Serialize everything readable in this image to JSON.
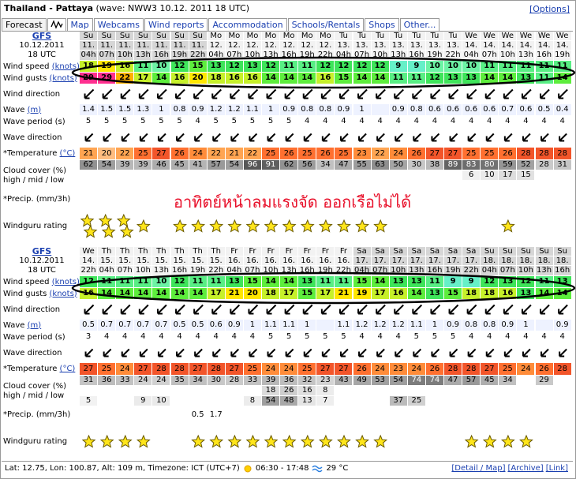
{
  "header": {
    "title": "Thailand - Pattaya",
    "wave_info": "(wave: NWW3 10.12. 2011 18 UTC)",
    "options": "[Options]"
  },
  "tabs": [
    "Forecast",
    "Map",
    "Webcams",
    "Wind reports",
    "Accommodation",
    "Schools/Rentals",
    "Shops",
    "Other..."
  ],
  "row_labels": {
    "wind_speed": {
      "text": "Wind speed",
      "unit": "(knots)"
    },
    "wind_gusts": {
      "text": "Wind gusts",
      "unit": "(knots)"
    },
    "wind_direction": {
      "text": "Wind direction"
    },
    "wave": {
      "text": "Wave",
      "unit": "(m)"
    },
    "wave_period": {
      "text": "Wave period (s)"
    },
    "wave_direction": {
      "text": "Wave direction"
    },
    "temperature": {
      "text": "*Temperature",
      "unit": "(°C)"
    },
    "cloud": {
      "text": "Cloud cover (%)",
      "sub": "high / mid / low"
    },
    "precip": {
      "text": "*Precip. (mm/3h)"
    },
    "rating": {
      "text": "Windguru rating"
    }
  },
  "forecasts": [
    {
      "model": "GFS",
      "date": "10.12.2011",
      "time": "18 UTC",
      "days": [
        "Su",
        "Su",
        "Su",
        "Su",
        "Su",
        "Su",
        "Su",
        "Mo",
        "Mo",
        "Mo",
        "Mo",
        "Mo",
        "Mo",
        "Mo",
        "Tu",
        "Tu",
        "Tu",
        "Tu",
        "Tu",
        "Tu",
        "Tu",
        "We",
        "We",
        "We",
        "We",
        "We",
        "We"
      ],
      "dates": [
        "11.",
        "11.",
        "11.",
        "11.",
        "11.",
        "11.",
        "11.",
        "12.",
        "12.",
        "12.",
        "12.",
        "12.",
        "12.",
        "12.",
        "13.",
        "13.",
        "13.",
        "13.",
        "13.",
        "13.",
        "13.",
        "14.",
        "14.",
        "14.",
        "14.",
        "14.",
        "14."
      ],
      "hours": [
        "04h",
        "07h",
        "10h",
        "13h",
        "16h",
        "19h",
        "22h",
        "04h",
        "07h",
        "10h",
        "13h",
        "16h",
        "19h",
        "22h",
        "04h",
        "07h",
        "10h",
        "13h",
        "16h",
        "19h",
        "22h",
        "04h",
        "07h",
        "10h",
        "13h",
        "16h",
        "19h"
      ],
      "wind_speed": [
        18,
        19,
        16,
        11,
        10,
        12,
        15,
        13,
        12,
        13,
        12,
        11,
        11,
        12,
        12,
        12,
        12,
        9,
        9,
        10,
        10,
        10,
        11,
        11,
        11,
        11,
        11
      ],
      "wind_gusts": [
        29,
        29,
        22,
        17,
        14,
        16,
        20,
        18,
        16,
        16,
        14,
        14,
        14,
        16,
        15,
        14,
        14,
        11,
        11,
        12,
        13,
        13,
        14,
        14,
        13,
        11,
        14
      ],
      "wave": [
        1.4,
        1.5,
        1.5,
        1.3,
        1,
        0.8,
        0.9,
        1.2,
        1.2,
        1.1,
        1,
        0.9,
        0.8,
        0.8,
        0.9,
        1,
        null,
        0.9,
        0.8,
        0.6,
        0.6,
        0.6,
        0.6,
        0.7,
        0.6,
        0.5,
        0.4
      ],
      "wave_period": [
        5,
        5,
        5,
        5,
        5,
        5,
        4,
        5,
        5,
        5,
        5,
        5,
        4,
        4,
        4,
        4,
        4,
        4,
        4,
        4,
        4,
        4,
        4,
        4,
        4,
        4,
        4
      ],
      "temperature": [
        21,
        20,
        22,
        25,
        27,
        26,
        24,
        22,
        21,
        22,
        25,
        26,
        25,
        26,
        25,
        23,
        22,
        24,
        26,
        27,
        27,
        25,
        25,
        26,
        28,
        28,
        28
      ],
      "cloud_high": [
        62,
        54,
        39,
        39,
        46,
        45,
        41,
        57,
        54,
        96,
        91,
        62,
        56,
        34,
        47,
        55,
        63,
        50,
        30,
        38,
        89,
        83,
        80,
        59,
        52,
        28,
        31
      ],
      "cloud_mid": [
        null,
        null,
        null,
        null,
        null,
        null,
        null,
        null,
        null,
        null,
        null,
        null,
        null,
        null,
        null,
        null,
        null,
        null,
        null,
        null,
        null,
        6,
        10,
        17,
        15,
        null,
        null
      ],
      "cloud_low": [
        null,
        null,
        null,
        null,
        null,
        null,
        null,
        null,
        null,
        null,
        null,
        null,
        null,
        null,
        null,
        null,
        null,
        null,
        null,
        null,
        null,
        null,
        null,
        null,
        null,
        null,
        null
      ],
      "precip": [
        null,
        null,
        null,
        null,
        null,
        null,
        null,
        null,
        null,
        null,
        null,
        null,
        null,
        null,
        null,
        null,
        null,
        null,
        null,
        null,
        null,
        null,
        null,
        null,
        null,
        null,
        null
      ],
      "rating": [
        2,
        2,
        2,
        1,
        null,
        1,
        1,
        1,
        1,
        1,
        1,
        1,
        1,
        1,
        1,
        1,
        1,
        null,
        null,
        null,
        null,
        null,
        null,
        1,
        null,
        null,
        null
      ]
    },
    {
      "model": "GFS",
      "date": "10.12.2011",
      "time": "18 UTC",
      "days": [
        "We",
        "Th",
        "Th",
        "Th",
        "Th",
        "Th",
        "Th",
        "Th",
        "Fr",
        "Fr",
        "Fr",
        "Fr",
        "Fr",
        "Fr",
        "Fr",
        "Sa",
        "Sa",
        "Sa",
        "Sa",
        "Sa",
        "Sa",
        "Sa",
        "Su",
        "Su",
        "Su",
        "Su",
        "Su"
      ],
      "dates": [
        "14.",
        "15.",
        "15.",
        "15.",
        "15.",
        "15.",
        "15.",
        "15.",
        "16.",
        "16.",
        "16.",
        "16.",
        "16.",
        "16.",
        "16.",
        "17.",
        "17.",
        "17.",
        "17.",
        "17.",
        "17.",
        "17.",
        "18.",
        "18.",
        "18.",
        "18.",
        "18."
      ],
      "hours": [
        "22h",
        "04h",
        "07h",
        "10h",
        "13h",
        "16h",
        "19h",
        "22h",
        "04h",
        "07h",
        "10h",
        "13h",
        "16h",
        "19h",
        "22h",
        "04h",
        "07h",
        "10h",
        "13h",
        "16h",
        "19h",
        "22h",
        "04h",
        "07h",
        "10h",
        "13h",
        "16h"
      ],
      "wind_speed": [
        12,
        11,
        11,
        11,
        10,
        12,
        11,
        11,
        13,
        15,
        14,
        14,
        13,
        11,
        11,
        15,
        14,
        13,
        13,
        11,
        9,
        9,
        12,
        13,
        12,
        11,
        13
      ],
      "wind_gusts": [
        16,
        14,
        14,
        14,
        14,
        14,
        14,
        17,
        21,
        20,
        18,
        17,
        15,
        17,
        21,
        19,
        17,
        16,
        14,
        13,
        15,
        18,
        18,
        16,
        13,
        14,
        14
      ],
      "wave": [
        0.5,
        0.7,
        0.7,
        0.7,
        0.7,
        0.5,
        0.5,
        0.6,
        0.9,
        1,
        1.1,
        1.1,
        1,
        null,
        1.1,
        1.2,
        1.2,
        1.2,
        1.1,
        1,
        0.9,
        0.8,
        0.8,
        0.9,
        1,
        null,
        0.9
      ],
      "wave_period": [
        3,
        4,
        4,
        4,
        4,
        4,
        4,
        4,
        4,
        4,
        5,
        5,
        5,
        5,
        5,
        4,
        4,
        4,
        5,
        5,
        5,
        4,
        4,
        4,
        4,
        4,
        4
      ],
      "temperature": [
        27,
        25,
        24,
        27,
        28,
        28,
        27,
        28,
        27,
        25,
        24,
        24,
        25,
        27,
        27,
        26,
        24,
        23,
        24,
        26,
        28,
        28,
        27,
        25,
        24,
        26,
        28
      ],
      "cloud_high": [
        31,
        36,
        33,
        24,
        24,
        35,
        34,
        30,
        28,
        33,
        39,
        36,
        32,
        23,
        43,
        49,
        53,
        54,
        74,
        74,
        47,
        57,
        45,
        34,
        null,
        29,
        null
      ],
      "cloud_mid": [
        null,
        null,
        null,
        null,
        null,
        null,
        null,
        null,
        null,
        null,
        18,
        26,
        16,
        8,
        null,
        null,
        null,
        null,
        null,
        null,
        null,
        null,
        null,
        null,
        null,
        null,
        null
      ],
      "cloud_low": [
        5,
        null,
        null,
        9,
        10,
        null,
        null,
        null,
        null,
        8,
        54,
        48,
        13,
        7,
        null,
        null,
        null,
        37,
        25,
        null,
        null,
        null,
        null,
        null,
        null,
        null,
        null
      ],
      "precip": [
        null,
        null,
        null,
        null,
        null,
        null,
        0.5,
        1.7,
        null,
        null,
        null,
        null,
        null,
        null,
        null,
        null,
        null,
        null,
        null,
        null,
        null,
        null,
        null,
        null,
        null,
        null,
        null
      ],
      "rating": [
        1,
        1,
        1,
        1,
        null,
        null,
        1,
        1,
        1,
        1,
        1,
        1,
        1,
        1,
        1,
        1,
        1,
        null,
        null,
        null,
        null,
        1,
        1,
        1,
        1,
        null,
        null
      ]
    }
  ],
  "overlay_text": "อาทิตย์หน้าลมแรงจัด ออกเรือไม่ได้",
  "footer": {
    "location": "Lat: 12.75, Lon: 100.87, Alt: 109 m, Timezone: ICT (UTC+7)",
    "sun": "06:30 - 17:48",
    "sea_temp": "29 °C",
    "links": [
      "[Detail / Map]",
      "[Archive]",
      "[Link]"
    ]
  }
}
